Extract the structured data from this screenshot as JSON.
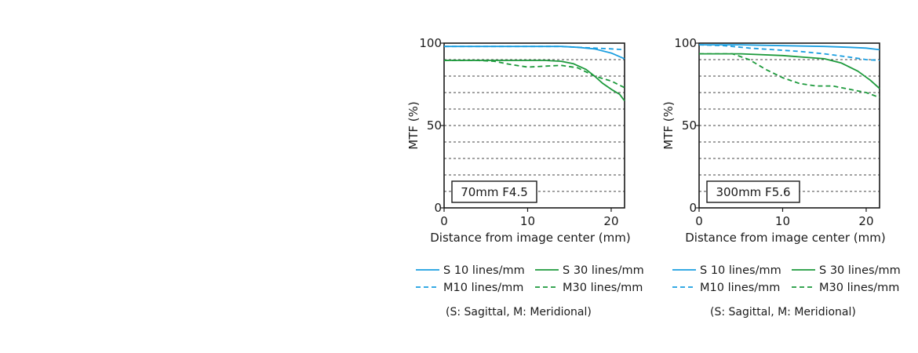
{
  "note": "(S: Sagittal, M: Meridional)",
  "legend": [
    {
      "label": "S 10 lines/mm",
      "color": "#1a9ee0",
      "dash": false
    },
    {
      "label": "S 30 lines/mm",
      "color": "#1d9a3c",
      "dash": false
    },
    {
      "label": "M10 lines/mm",
      "color": "#1a9ee0",
      "dash": true
    },
    {
      "label": "M30 lines/mm",
      "color": "#1d9a3c",
      "dash": true
    }
  ],
  "chart_data": [
    {
      "type": "line",
      "label": "70mm F4.5",
      "xlabel": "Distance from image center (mm)",
      "ylabel": "MTF (%)",
      "xlim": [
        0,
        21.6
      ],
      "ylim": [
        0,
        100
      ],
      "xticks": [
        0,
        10,
        20
      ],
      "yticks": [
        0,
        50,
        100
      ],
      "grid": "dashed horizontal every 10",
      "series": [
        {
          "name": "S 10 lines/mm",
          "color": "#1a9ee0",
          "dash": false,
          "x": [
            0,
            5,
            10,
            14,
            16,
            18,
            20,
            21.6
          ],
          "y": [
            98,
            98,
            98,
            98,
            97.5,
            96.5,
            94,
            90.5
          ]
        },
        {
          "name": "M10 lines/mm",
          "color": "#1a9ee0",
          "dash": true,
          "x": [
            0,
            5,
            10,
            14,
            16,
            18,
            20,
            21.6
          ],
          "y": [
            98,
            98,
            98,
            98,
            97.5,
            97,
            96.5,
            96
          ]
        },
        {
          "name": "S 30 lines/mm",
          "color": "#1d9a3c",
          "dash": false,
          "x": [
            0,
            4,
            8,
            12,
            14,
            15.5,
            17,
            18,
            19,
            20,
            21,
            21.6
          ],
          "y": [
            89.5,
            89.5,
            89.5,
            89.5,
            89,
            87.5,
            84,
            80,
            75.5,
            72,
            69,
            65
          ]
        },
        {
          "name": "M30 lines/mm",
          "color": "#1d9a3c",
          "dash": true,
          "x": [
            0,
            4,
            6,
            8,
            10,
            12,
            14,
            16,
            18,
            20,
            21.6
          ],
          "y": [
            89.5,
            89.5,
            89,
            87,
            85.5,
            86,
            86.5,
            85,
            80,
            77,
            73
          ]
        }
      ]
    },
    {
      "type": "line",
      "label": "300mm F5.6",
      "xlabel": "Distance from image center (mm)",
      "ylabel": "MTF (%)",
      "xlim": [
        0,
        21.6
      ],
      "ylim": [
        0,
        100
      ],
      "xticks": [
        0,
        10,
        20
      ],
      "yticks": [
        0,
        50,
        100
      ],
      "grid": "dashed horizontal every 10",
      "series": [
        {
          "name": "S 10 lines/mm",
          "color": "#1a9ee0",
          "dash": false,
          "x": [
            0,
            5,
            10,
            15,
            18,
            20,
            21.6
          ],
          "y": [
            99,
            99,
            98.5,
            98,
            97.5,
            97,
            96
          ]
        },
        {
          "name": "M10 lines/mm",
          "color": "#1a9ee0",
          "dash": true,
          "x": [
            0,
            3,
            6,
            9,
            12,
            15,
            18,
            20,
            21.6
          ],
          "y": [
            99,
            98.5,
            97,
            96,
            95,
            93.5,
            91.5,
            90,
            89.5
          ]
        },
        {
          "name": "S 30 lines/mm",
          "color": "#1d9a3c",
          "dash": false,
          "x": [
            0,
            5,
            10,
            15,
            17,
            19,
            20.5,
            21.6
          ],
          "y": [
            93.5,
            93.5,
            92.5,
            90.5,
            88,
            83,
            77.5,
            72.5
          ]
        },
        {
          "name": "M30 lines/mm",
          "color": "#1d9a3c",
          "dash": true,
          "x": [
            0,
            4,
            6,
            8,
            10,
            12,
            14,
            16,
            18,
            20,
            21.6
          ],
          "y": [
            93.5,
            93.5,
            90,
            84,
            79,
            75.5,
            74,
            74,
            72,
            70,
            67
          ]
        }
      ]
    }
  ]
}
